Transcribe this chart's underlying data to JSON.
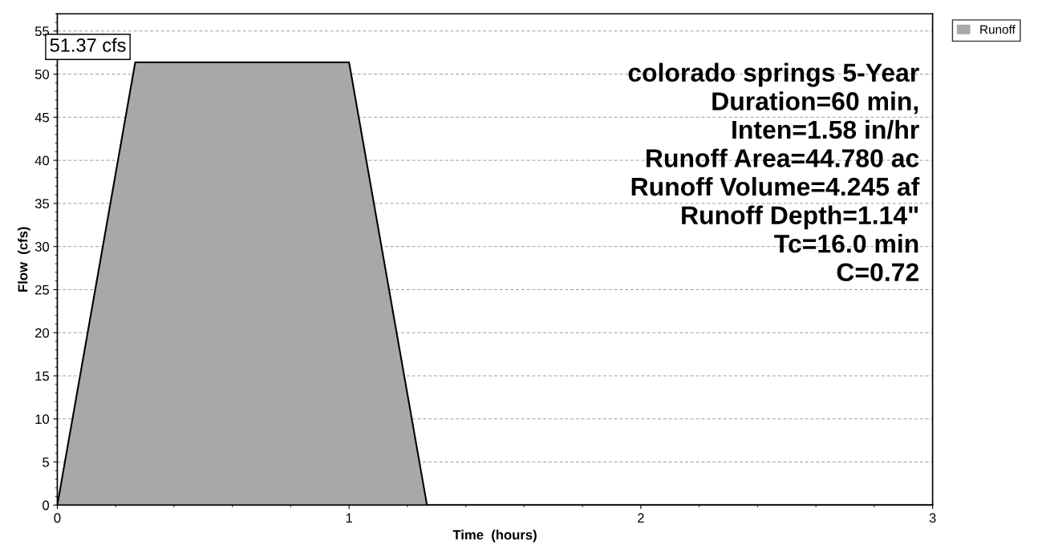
{
  "chart_data": {
    "type": "area",
    "xlabel": "Time  (hours)",
    "ylabel": "Flow  (cfs)",
    "series": [
      {
        "name": "Runoff",
        "color": "#a8a8a8",
        "x": [
          0,
          0.267,
          1.0,
          1.267,
          3.0
        ],
        "values": [
          0,
          51.37,
          51.37,
          0,
          0
        ]
      }
    ],
    "xlim": [
      0,
      3
    ],
    "xticks": [
      0,
      1,
      2,
      3
    ],
    "ylim": [
      0,
      57
    ],
    "yticks": [
      0,
      5,
      10,
      15,
      20,
      25,
      30,
      35,
      40,
      45,
      50,
      55
    ],
    "grid": "y",
    "legend": "top right",
    "annotations": [
      {
        "text": "51.37 cfs",
        "x": 0.267,
        "y": 51.37
      },
      "colorado springs 5-Year\nDuration=60 min,\nInten=1.58 in/hr\nRunoff Area=44.780 ac\nRunoff Volume=4.245 af\nRunoff Depth=1.14\"\nTc=16.0 min\nC=0.72"
    ]
  }
}
